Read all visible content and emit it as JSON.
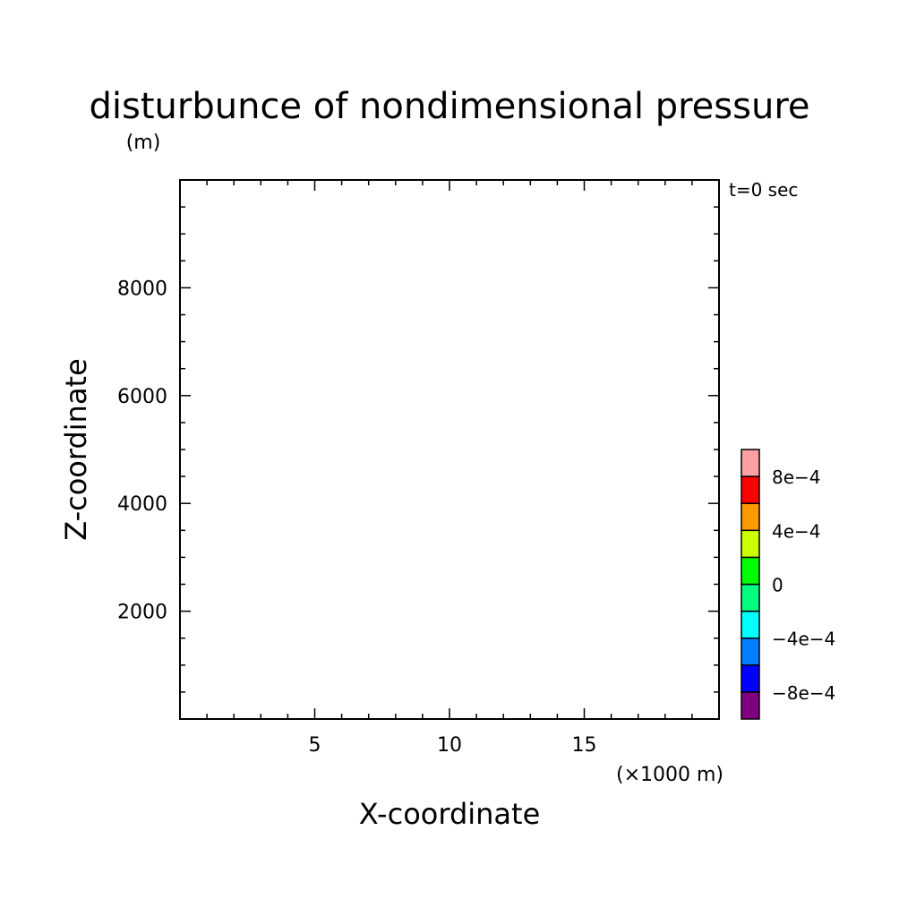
{
  "chart_data": {
    "type": "heatmap",
    "title": "disturbunce of nondimensional pressure",
    "time_label": "t=0 sec",
    "xlabel": "X-coordinate",
    "ylabel": "Z-coordinate",
    "x_unit": "(×1000 m)",
    "y_unit": "(m)",
    "xlim": [
      0,
      20
    ],
    "ylim": [
      0,
      10000
    ],
    "x_ticks": [
      5,
      10,
      15
    ],
    "y_ticks": [
      2000,
      4000,
      6000,
      8000
    ],
    "field_values": [],
    "colorbar": {
      "colors": [
        "#800080",
        "#0000ff",
        "#0080ff",
        "#00ffff",
        "#00ff80",
        "#00ff00",
        "#ccff00",
        "#ff9900",
        "#ff0000",
        "#ffa0a0"
      ],
      "levels": [
        -0.001,
        -0.0008,
        -0.0006,
        -0.0004,
        -0.0002,
        0,
        0.0002,
        0.0004,
        0.0006,
        0.0008,
        0.001
      ],
      "labels": [
        {
          "value": -0.0008,
          "text": "−8e−4"
        },
        {
          "value": -0.0004,
          "text": "−4e−4"
        },
        {
          "value": 0,
          "text": "0"
        },
        {
          "value": 0.0004,
          "text": "4e−4"
        },
        {
          "value": 0.0008,
          "text": "8e−4"
        }
      ]
    }
  }
}
